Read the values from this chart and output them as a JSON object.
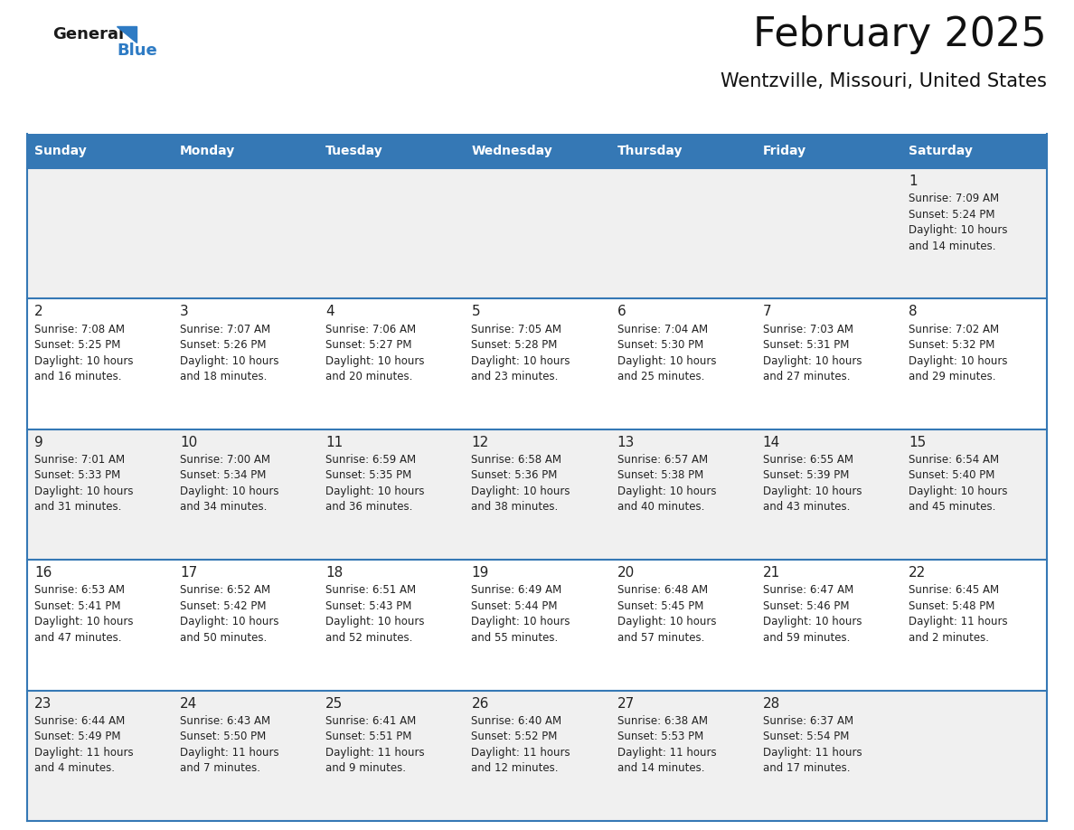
{
  "title": "February 2025",
  "subtitle": "Wentzville, Missouri, United States",
  "days_of_week": [
    "Sunday",
    "Monday",
    "Tuesday",
    "Wednesday",
    "Thursday",
    "Friday",
    "Saturday"
  ],
  "header_color": "#3578b5",
  "header_text_color": "#ffffff",
  "row_bg_odd": "#f0f0f0",
  "row_bg_even": "#ffffff",
  "border_color": "#3578b5",
  "text_color": "#222222",
  "day_number_color": "#222222",
  "logo_general_color": "#1a1a1a",
  "logo_blue_color": "#2e7bc4",
  "calendar_data": [
    [
      null,
      null,
      null,
      null,
      null,
      null,
      {
        "day": 1,
        "sunrise": "7:09 AM",
        "sunset": "5:24 PM",
        "daylight_line1": "Daylight: 10 hours",
        "daylight_line2": "and 14 minutes."
      }
    ],
    [
      {
        "day": 2,
        "sunrise": "7:08 AM",
        "sunset": "5:25 PM",
        "daylight_line1": "Daylight: 10 hours",
        "daylight_line2": "and 16 minutes."
      },
      {
        "day": 3,
        "sunrise": "7:07 AM",
        "sunset": "5:26 PM",
        "daylight_line1": "Daylight: 10 hours",
        "daylight_line2": "and 18 minutes."
      },
      {
        "day": 4,
        "sunrise": "7:06 AM",
        "sunset": "5:27 PM",
        "daylight_line1": "Daylight: 10 hours",
        "daylight_line2": "and 20 minutes."
      },
      {
        "day": 5,
        "sunrise": "7:05 AM",
        "sunset": "5:28 PM",
        "daylight_line1": "Daylight: 10 hours",
        "daylight_line2": "and 23 minutes."
      },
      {
        "day": 6,
        "sunrise": "7:04 AM",
        "sunset": "5:30 PM",
        "daylight_line1": "Daylight: 10 hours",
        "daylight_line2": "and 25 minutes."
      },
      {
        "day": 7,
        "sunrise": "7:03 AM",
        "sunset": "5:31 PM",
        "daylight_line1": "Daylight: 10 hours",
        "daylight_line2": "and 27 minutes."
      },
      {
        "day": 8,
        "sunrise": "7:02 AM",
        "sunset": "5:32 PM",
        "daylight_line1": "Daylight: 10 hours",
        "daylight_line2": "and 29 minutes."
      }
    ],
    [
      {
        "day": 9,
        "sunrise": "7:01 AM",
        "sunset": "5:33 PM",
        "daylight_line1": "Daylight: 10 hours",
        "daylight_line2": "and 31 minutes."
      },
      {
        "day": 10,
        "sunrise": "7:00 AM",
        "sunset": "5:34 PM",
        "daylight_line1": "Daylight: 10 hours",
        "daylight_line2": "and 34 minutes."
      },
      {
        "day": 11,
        "sunrise": "6:59 AM",
        "sunset": "5:35 PM",
        "daylight_line1": "Daylight: 10 hours",
        "daylight_line2": "and 36 minutes."
      },
      {
        "day": 12,
        "sunrise": "6:58 AM",
        "sunset": "5:36 PM",
        "daylight_line1": "Daylight: 10 hours",
        "daylight_line2": "and 38 minutes."
      },
      {
        "day": 13,
        "sunrise": "6:57 AM",
        "sunset": "5:38 PM",
        "daylight_line1": "Daylight: 10 hours",
        "daylight_line2": "and 40 minutes."
      },
      {
        "day": 14,
        "sunrise": "6:55 AM",
        "sunset": "5:39 PM",
        "daylight_line1": "Daylight: 10 hours",
        "daylight_line2": "and 43 minutes."
      },
      {
        "day": 15,
        "sunrise": "6:54 AM",
        "sunset": "5:40 PM",
        "daylight_line1": "Daylight: 10 hours",
        "daylight_line2": "and 45 minutes."
      }
    ],
    [
      {
        "day": 16,
        "sunrise": "6:53 AM",
        "sunset": "5:41 PM",
        "daylight_line1": "Daylight: 10 hours",
        "daylight_line2": "and 47 minutes."
      },
      {
        "day": 17,
        "sunrise": "6:52 AM",
        "sunset": "5:42 PM",
        "daylight_line1": "Daylight: 10 hours",
        "daylight_line2": "and 50 minutes."
      },
      {
        "day": 18,
        "sunrise": "6:51 AM",
        "sunset": "5:43 PM",
        "daylight_line1": "Daylight: 10 hours",
        "daylight_line2": "and 52 minutes."
      },
      {
        "day": 19,
        "sunrise": "6:49 AM",
        "sunset": "5:44 PM",
        "daylight_line1": "Daylight: 10 hours",
        "daylight_line2": "and 55 minutes."
      },
      {
        "day": 20,
        "sunrise": "6:48 AM",
        "sunset": "5:45 PM",
        "daylight_line1": "Daylight: 10 hours",
        "daylight_line2": "and 57 minutes."
      },
      {
        "day": 21,
        "sunrise": "6:47 AM",
        "sunset": "5:46 PM",
        "daylight_line1": "Daylight: 10 hours",
        "daylight_line2": "and 59 minutes."
      },
      {
        "day": 22,
        "sunrise": "6:45 AM",
        "sunset": "5:48 PM",
        "daylight_line1": "Daylight: 11 hours",
        "daylight_line2": "and 2 minutes."
      }
    ],
    [
      {
        "day": 23,
        "sunrise": "6:44 AM",
        "sunset": "5:49 PM",
        "daylight_line1": "Daylight: 11 hours",
        "daylight_line2": "and 4 minutes."
      },
      {
        "day": 24,
        "sunrise": "6:43 AM",
        "sunset": "5:50 PM",
        "daylight_line1": "Daylight: 11 hours",
        "daylight_line2": "and 7 minutes."
      },
      {
        "day": 25,
        "sunrise": "6:41 AM",
        "sunset": "5:51 PM",
        "daylight_line1": "Daylight: 11 hours",
        "daylight_line2": "and 9 minutes."
      },
      {
        "day": 26,
        "sunrise": "6:40 AM",
        "sunset": "5:52 PM",
        "daylight_line1": "Daylight: 11 hours",
        "daylight_line2": "and 12 minutes."
      },
      {
        "day": 27,
        "sunrise": "6:38 AM",
        "sunset": "5:53 PM",
        "daylight_line1": "Daylight: 11 hours",
        "daylight_line2": "and 14 minutes."
      },
      {
        "day": 28,
        "sunrise": "6:37 AM",
        "sunset": "5:54 PM",
        "daylight_line1": "Daylight: 11 hours",
        "daylight_line2": "and 17 minutes."
      },
      null
    ]
  ]
}
